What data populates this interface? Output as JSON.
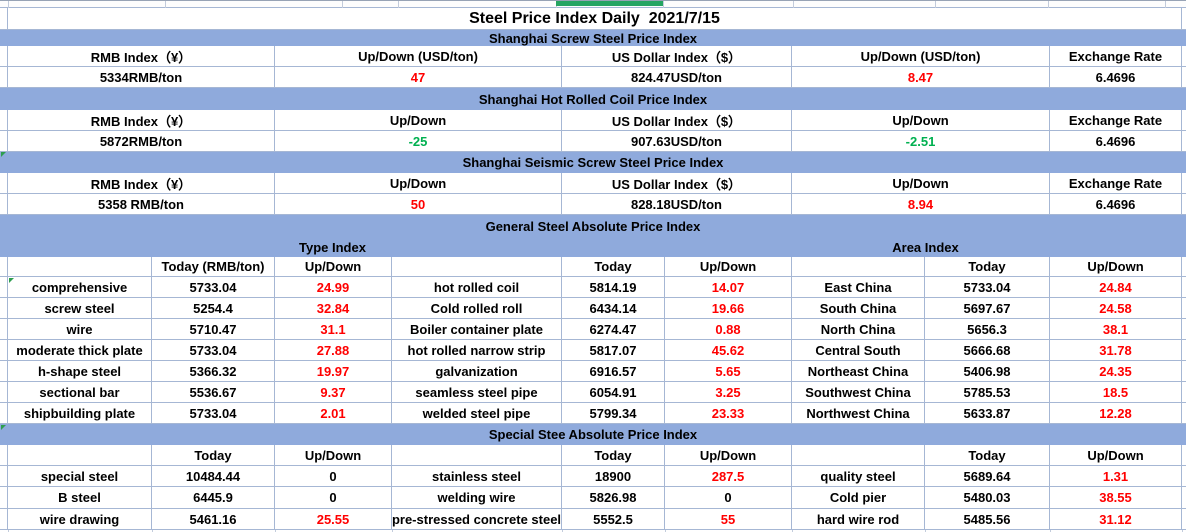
{
  "title": "Steel Price Index Daily  2021/7/15",
  "colors": {
    "header_band": "#8FAADC",
    "up_red": "#FF0000",
    "down_green": "#00B050",
    "grid": "#A6B7D4",
    "highlight_green_cell": "#26A562"
  },
  "top_sections": [
    {
      "band": "Shanghai Screw Steel Price Index",
      "headers": [
        "RMB Index（¥）",
        "Up/Down (USD/ton)",
        "US Dollar Index（$）",
        "Up/Down (USD/ton)",
        "Exchange Rate"
      ],
      "values": [
        "5334RMB/ton",
        "47",
        "824.47USD/ton",
        "8.47",
        "6.4696"
      ],
      "value_colors": [
        "black",
        "red",
        "black",
        "red",
        "black"
      ]
    },
    {
      "band": "Shanghai Hot Rolled Coil Price Index",
      "headers": [
        "RMB Index（¥）",
        "Up/Down",
        "US Dollar Index（$）",
        "Up/Down",
        "Exchange Rate"
      ],
      "values": [
        "5872RMB/ton",
        "-25",
        "907.63USD/ton",
        "-2.51",
        "6.4696"
      ],
      "value_colors": [
        "black",
        "green",
        "black",
        "green",
        "black"
      ]
    },
    {
      "band": "Shanghai Seismic Screw Steel Price Index",
      "headers": [
        "RMB Index（¥）",
        "Up/Down",
        "US Dollar Index（$）",
        "Up/Down",
        "Exchange Rate"
      ],
      "values": [
        "5358 RMB/ton",
        "50",
        "828.18USD/ton",
        "8.94",
        "6.4696"
      ],
      "value_colors": [
        "black",
        "red",
        "black",
        "red",
        "black"
      ]
    }
  ],
  "general_section": {
    "band": "General Steel Absolute Price Index",
    "group_headers": [
      "Type Index",
      "Area Index"
    ],
    "col_headers": [
      "",
      "Today (RMB/ton)",
      "Up/Down",
      "",
      "Today",
      "Up/Down",
      "",
      "Today",
      "Up/Down"
    ],
    "rows": [
      {
        "cells": [
          "comprehensive",
          "5733.04",
          "24.99",
          "hot rolled coil",
          "5814.19",
          "14.07",
          "East China",
          "5733.04",
          "24.84"
        ],
        "change_colors": [
          "red",
          "red",
          "red"
        ]
      },
      {
        "cells": [
          "screw steel",
          "5254.4",
          "32.84",
          "Cold rolled roll",
          "6434.14",
          "19.66",
          "South China",
          "5697.67",
          "24.58"
        ],
        "change_colors": [
          "red",
          "red",
          "red"
        ]
      },
      {
        "cells": [
          "wire",
          "5710.47",
          "31.1",
          "Boiler container plate",
          "6274.47",
          "0.88",
          "North China",
          "5656.3",
          "38.1"
        ],
        "change_colors": [
          "red",
          "red",
          "red"
        ]
      },
      {
        "cells": [
          "moderate thick plate",
          "5733.04",
          "27.88",
          "hot rolled narrow strip",
          "5817.07",
          "45.62",
          "Central South",
          "5666.68",
          "31.78"
        ],
        "change_colors": [
          "red",
          "red",
          "red"
        ]
      },
      {
        "cells": [
          "h-shape steel",
          "5366.32",
          "19.97",
          "galvanization",
          "6916.57",
          "5.65",
          "Northeast China",
          "5406.98",
          "24.35"
        ],
        "change_colors": [
          "red",
          "red",
          "red"
        ]
      },
      {
        "cells": [
          "sectional bar",
          "5536.67",
          "9.37",
          "seamless steel pipe",
          "6054.91",
          "3.25",
          "Southwest China",
          "5785.53",
          "18.5"
        ],
        "change_colors": [
          "red",
          "red",
          "red"
        ]
      },
      {
        "cells": [
          "shipbuilding plate",
          "5733.04",
          "2.01",
          "welded steel pipe",
          "5799.34",
          "23.33",
          "Northwest China",
          "5633.87",
          "12.28"
        ],
        "change_colors": [
          "red",
          "red",
          "red"
        ]
      }
    ]
  },
  "special_section": {
    "band": "Special Stee Absolute Price Index",
    "col_headers": [
      "",
      "Today",
      "Up/Down",
      "",
      "Today",
      "Up/Down",
      "",
      "Today",
      "Up/Down"
    ],
    "rows": [
      {
        "cells": [
          "special steel",
          "10484.44",
          "0",
          "stainless steel",
          "18900",
          "287.5",
          "quality steel",
          "5689.64",
          "1.31"
        ],
        "change_colors": [
          "black",
          "red",
          "red"
        ]
      },
      {
        "cells": [
          "B steel",
          "6445.9",
          "0",
          "welding wire",
          "5826.98",
          "0",
          "Cold pier",
          "5480.03",
          "38.55"
        ],
        "change_colors": [
          "black",
          "black",
          "red"
        ]
      },
      {
        "cells": [
          "wire drawing",
          "5461.16",
          "25.55",
          "pre-stressed concrete steel",
          "5552.5",
          "55",
          "hard wire rod",
          "5485.56",
          "31.12"
        ],
        "change_colors": [
          "red",
          "red",
          "red"
        ]
      }
    ]
  }
}
